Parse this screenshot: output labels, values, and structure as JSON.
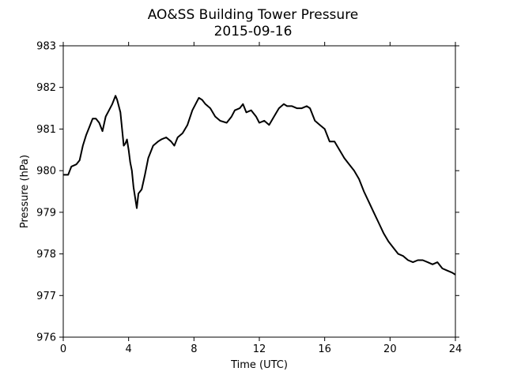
{
  "chart_data": {
    "type": "line",
    "title": "AO&SS Building Tower Pressure",
    "subtitle": "2015-09-16",
    "xlabel": "Time (UTC)",
    "ylabel": "Pressure (hPa)",
    "xlim": [
      0,
      24
    ],
    "ylim": [
      976,
      983
    ],
    "xticks": [
      "0",
      "4",
      "8",
      "12",
      "16",
      "20",
      "24"
    ],
    "yticks": [
      "976",
      "977",
      "978",
      "979",
      "980",
      "981",
      "982",
      "983"
    ],
    "grid": false,
    "legend": "none",
    "line_color": "#000000",
    "series": [
      {
        "x": [
          0,
          0.3,
          0.5,
          0.8,
          1.0,
          1.2,
          1.4,
          1.6,
          1.8,
          2.0,
          2.2,
          2.4,
          2.6,
          2.8,
          3.0,
          3.2,
          3.3,
          3.5,
          3.7,
          3.8,
          3.9,
          4.0,
          4.1,
          4.2,
          4.3,
          4.5,
          4.6,
          4.8,
          5.0,
          5.2,
          5.5,
          5.8,
          6.0,
          6.3,
          6.6,
          6.8,
          7.0,
          7.3,
          7.6,
          7.9,
          8.1,
          8.3,
          8.5,
          8.7,
          9.0,
          9.3,
          9.6,
          10.0,
          10.3,
          10.5,
          10.8,
          11.0,
          11.2,
          11.5,
          11.8,
          12.0,
          12.3,
          12.6,
          12.9,
          13.2,
          13.5,
          13.7,
          14.0,
          14.3,
          14.6,
          14.9,
          15.1,
          15.4,
          15.7,
          16.0,
          16.3,
          16.6,
          16.9,
          17.2,
          17.5,
          17.8,
          18.1,
          18.4,
          18.7,
          19.0,
          19.3,
          19.6,
          19.9,
          20.2,
          20.5,
          20.8,
          21.1,
          21.4,
          21.7,
          22.0,
          22.3,
          22.6,
          22.9,
          23.2,
          23.5,
          23.8,
          24.0
        ],
        "y": [
          979.9,
          979.9,
          980.1,
          980.15,
          980.25,
          980.6,
          980.85,
          981.05,
          981.25,
          981.25,
          981.15,
          980.95,
          981.3,
          981.45,
          981.6,
          981.8,
          981.7,
          981.4,
          980.6,
          980.65,
          980.75,
          980.5,
          980.2,
          980.0,
          979.6,
          979.1,
          979.45,
          979.55,
          979.9,
          980.3,
          980.6,
          980.7,
          980.75,
          980.8,
          980.7,
          980.6,
          980.8,
          980.9,
          981.1,
          981.45,
          981.6,
          981.75,
          981.7,
          981.6,
          981.5,
          981.3,
          981.2,
          981.15,
          981.3,
          981.45,
          981.5,
          981.6,
          981.4,
          981.45,
          981.3,
          981.15,
          981.2,
          981.1,
          981.3,
          981.5,
          981.6,
          981.55,
          981.55,
          981.5,
          981.5,
          981.55,
          981.5,
          981.2,
          981.1,
          981.0,
          980.7,
          980.7,
          980.5,
          980.3,
          980.15,
          980.0,
          979.8,
          979.5,
          979.25,
          979.0,
          978.75,
          978.5,
          978.3,
          978.15,
          978.0,
          977.95,
          977.85,
          977.8,
          977.85,
          977.85,
          977.8,
          977.75,
          977.8,
          977.65,
          977.6,
          977.55,
          977.5
        ]
      }
    ]
  }
}
